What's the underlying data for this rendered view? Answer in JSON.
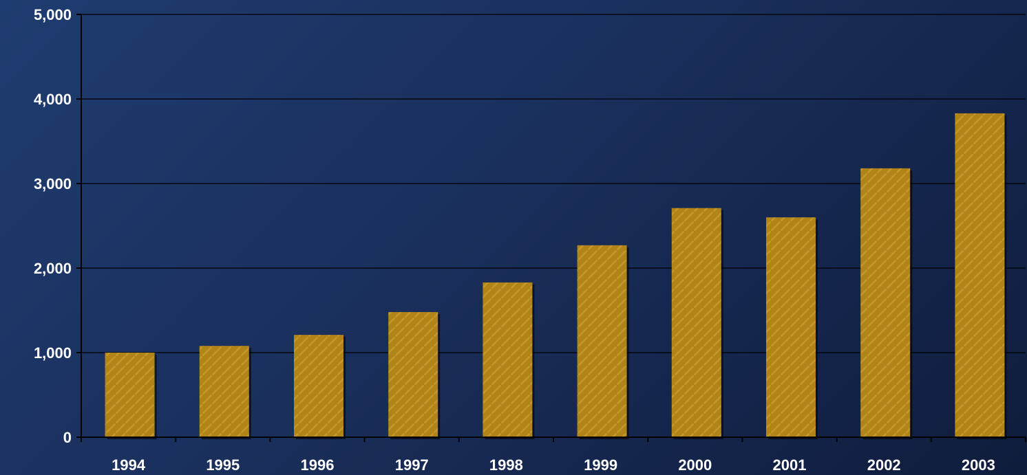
{
  "colors": {
    "bar": "#b08418",
    "bar_light": "#c89a2a",
    "bar_dark": "#8d6810",
    "axis": "#000000",
    "grid": "#000000",
    "label": "#ffffff"
  },
  "chart_data": {
    "type": "bar",
    "title": "",
    "xlabel": "",
    "ylabel": "",
    "categories": [
      "1994",
      "1995",
      "1996",
      "1997",
      "1998",
      "1999",
      "2000",
      "2001",
      "2002",
      "2003"
    ],
    "values": [
      1000,
      1080,
      1210,
      1480,
      1830,
      2270,
      2710,
      2600,
      3180,
      3830
    ],
    "ylim": [
      0,
      5000
    ],
    "yticks": [
      0,
      1000,
      2000,
      3000,
      4000,
      5000
    ],
    "ytick_labels": [
      "0",
      "1,000",
      "2,000",
      "3,000",
      "4,000",
      "5,000"
    ],
    "grid": true,
    "legend": "none"
  }
}
